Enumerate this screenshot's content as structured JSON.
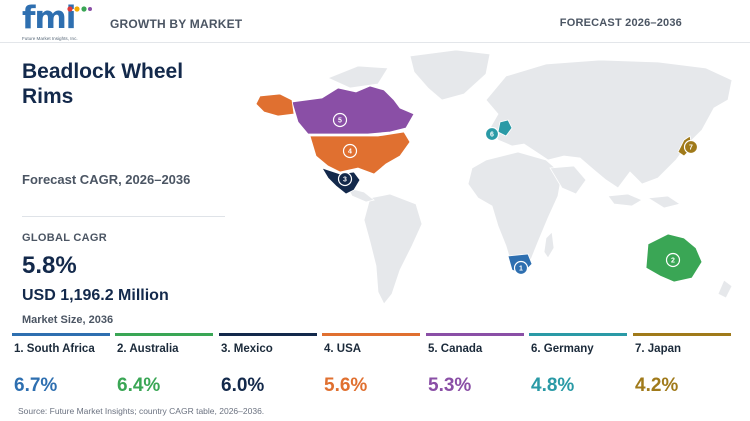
{
  "header": {
    "logo_text": "fmi",
    "logo_tagline": "Future Market Insights, Inc.",
    "left_label": "GROWTH BY MARKET",
    "right_label": "FORECAST 2026–2036"
  },
  "title": "Beadlock Wheel Rims",
  "cagr_period_label": "Forecast CAGR, 2026–2036",
  "global": {
    "label": "GLOBAL CAGR",
    "value": "5.8%",
    "market_size": "USD 1,196.2 Million",
    "market_size_label": "Market Size, 2036"
  },
  "countries": [
    {
      "rank": "1",
      "label": "1. South Africa",
      "cagr": "6.7%",
      "color": "#2e6fb0"
    },
    {
      "rank": "2",
      "label": "2. Australia",
      "cagr": "6.4%",
      "color": "#3aa655"
    },
    {
      "rank": "3",
      "label": "3. Mexico",
      "cagr": "6.0%",
      "color": "#13294b"
    },
    {
      "rank": "4",
      "label": "4. USA",
      "cagr": "5.6%",
      "color": "#e07030"
    },
    {
      "rank": "5",
      "label": "5. Canada",
      "cagr": "5.3%",
      "color": "#8a4fa6"
    },
    {
      "rank": "6",
      "label": "6. Germany",
      "cagr": "4.8%",
      "color": "#2a9aa6"
    },
    {
      "rank": "7",
      "label": "7. Japan",
      "cagr": "4.2%",
      "color": "#a07a1a"
    }
  ],
  "source": "Source: Future Market Insights; country CAGR table, 2026–2036."
}
